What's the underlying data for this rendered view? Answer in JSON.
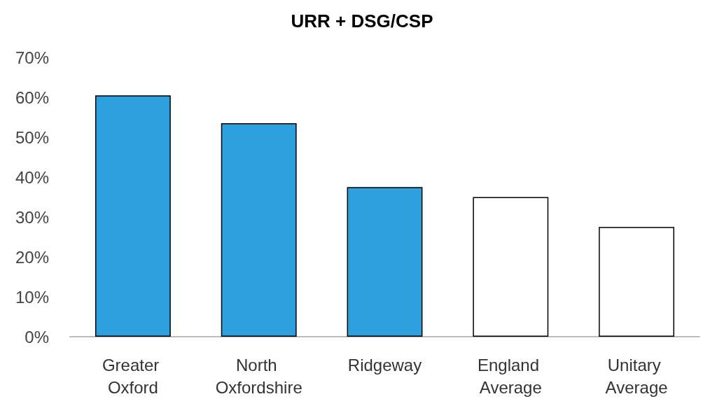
{
  "chart_data": {
    "type": "bar",
    "title": "URR + DSG/CSP",
    "categories": [
      "Greater Oxford",
      "North Oxfordshire",
      "Ridgeway",
      "England Average",
      "Unitary Average"
    ],
    "values": [
      60.5,
      53.5,
      37.5,
      35,
      27.5
    ],
    "colors": [
      "#2e9fdf",
      "#2e9fdf",
      "#2e9fdf",
      "#ffffff",
      "#ffffff"
    ],
    "ylim": [
      0,
      70
    ],
    "yticks": [
      {
        "value": 0,
        "label": "0%"
      },
      {
        "value": 10,
        "label": "10%"
      },
      {
        "value": 20,
        "label": "20%"
      },
      {
        "value": 30,
        "label": "30%"
      },
      {
        "value": 40,
        "label": "40%"
      },
      {
        "value": 50,
        "label": "50%"
      },
      {
        "value": 60,
        "label": "60%"
      },
      {
        "value": 70,
        "label": "70%"
      }
    ],
    "grid": false
  }
}
